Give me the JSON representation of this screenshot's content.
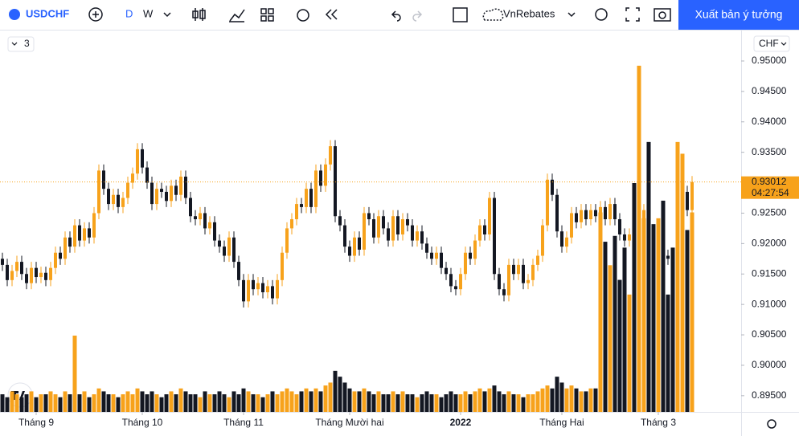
{
  "toolbar": {
    "symbol": "USDCHF",
    "intervals": [
      "D",
      "W"
    ],
    "layout": "VnRebates",
    "publish": "Xuất bản ý tưởng"
  },
  "legend_toggle": "3",
  "currency": "CHF",
  "chart_data": {
    "type": "candlestick",
    "up_color": "#f7a21b",
    "down_color": "#131722",
    "xlim": [
      -0.5,
      153.17
    ],
    "xticks": [
      {
        "value": 7,
        "label": "Tháng 9"
      },
      {
        "value": 29,
        "label": "Tháng 10"
      },
      {
        "value": 50,
        "label": "Tháng 11"
      },
      {
        "value": 72,
        "label": "Tháng Mười hai"
      },
      {
        "value": 95,
        "label": "2022"
      },
      {
        "value": 116,
        "label": "Tháng Hai"
      },
      {
        "value": 136,
        "label": "Tháng 3"
      }
    ],
    "ylim": [
      0.89234,
      0.95501
    ],
    "yticks": [
      {
        "value": 0.95,
        "label": "0.95000"
      },
      {
        "value": 0.945,
        "label": "0.94500"
      },
      {
        "value": 0.94,
        "label": "0.94000"
      },
      {
        "value": 0.935,
        "label": "0.93500"
      },
      {
        "value": 0.93,
        "label": "0.93000"
      },
      {
        "value": 0.925,
        "label": "0.92500"
      },
      {
        "value": 0.92,
        "label": "0.92000"
      },
      {
        "value": 0.915,
        "label": "0.91500"
      },
      {
        "value": 0.91,
        "label": "0.91000"
      },
      {
        "value": 0.905,
        "label": "0.90500"
      },
      {
        "value": 0.9,
        "label": "0.90000"
      },
      {
        "value": 0.895,
        "label": "0.89500"
      }
    ],
    "last_price": {
      "value": 0.93012,
      "label": "0.93012"
    },
    "countdown": "04:27:54",
    "vlim": [
      0,
      130
    ],
    "open": [
      0.9175,
      0.9165,
      0.914,
      0.9155,
      0.917,
      0.915,
      0.9135,
      0.916,
      0.9145,
      0.9152,
      0.914,
      0.916,
      0.9185,
      0.9175,
      0.921,
      0.9195,
      0.923,
      0.9205,
      0.9225,
      0.921,
      0.925,
      0.932,
      0.929,
      0.9265,
      0.928,
      0.926,
      0.9275,
      0.93,
      0.9315,
      0.9355,
      0.9325,
      0.93,
      0.9265,
      0.929,
      0.9285,
      0.927,
      0.9295,
      0.928,
      0.931,
      0.9275,
      0.9245,
      0.924,
      0.925,
      0.9225,
      0.9235,
      0.9205,
      0.9195,
      0.918,
      0.921,
      0.917,
      0.914,
      0.9105,
      0.914,
      0.9125,
      0.9135,
      0.912,
      0.913,
      0.911,
      0.914,
      0.9185,
      0.9225,
      0.924,
      0.9265,
      0.926,
      0.929,
      0.926,
      0.932,
      0.9295,
      0.933,
      0.936,
      0.9245,
      0.923,
      0.9195,
      0.918,
      0.921,
      0.919,
      0.925,
      0.924,
      0.921,
      0.9245,
      0.9225,
      0.9205,
      0.9245,
      0.9215,
      0.924,
      0.923,
      0.9205,
      0.922,
      0.92,
      0.9185,
      0.9175,
      0.9185,
      0.916,
      0.915,
      0.913,
      0.9125,
      0.915,
      0.9185,
      0.9175,
      0.9205,
      0.923,
      0.9215,
      0.9275,
      0.915,
      0.9125,
      0.9115,
      0.9165,
      0.915,
      0.9165,
      0.9135,
      0.914,
      0.9165,
      0.918,
      0.923,
      0.9305,
      0.928,
      0.922,
      0.9195,
      0.921,
      0.925,
      0.9235,
      0.9255,
      0.924,
      0.9255,
      0.9245,
      0.926,
      0.924,
      0.9265,
      0.924,
      0.9215,
      0.9205,
      0.9215,
      0.917,
      0.922,
      0.9255,
      0.919,
      0.9175,
      0.9205,
      0.918,
      0.9175,
      0.917,
      0.9245,
      0.9285,
      0.9255
    ],
    "high": [
      0.9185,
      0.9175,
      0.9165,
      0.918,
      0.918,
      0.916,
      0.917,
      0.917,
      0.9162,
      0.9162,
      0.917,
      0.9195,
      0.9195,
      0.922,
      0.922,
      0.924,
      0.924,
      0.9235,
      0.9235,
      0.926,
      0.933,
      0.933,
      0.93,
      0.929,
      0.929,
      0.9285,
      0.931,
      0.9325,
      0.9365,
      0.9365,
      0.9335,
      0.931,
      0.93,
      0.93,
      0.9295,
      0.9305,
      0.9305,
      0.932,
      0.932,
      0.9285,
      0.9255,
      0.926,
      0.926,
      0.9245,
      0.9245,
      0.9215,
      0.9205,
      0.922,
      0.922,
      0.918,
      0.915,
      0.915,
      0.915,
      0.9145,
      0.9145,
      0.914,
      0.914,
      0.915,
      0.9195,
      0.9235,
      0.925,
      0.9275,
      0.9275,
      0.93,
      0.93,
      0.933,
      0.933,
      0.934,
      0.937,
      0.937,
      0.9255,
      0.924,
      0.9205,
      0.922,
      0.922,
      0.926,
      0.926,
      0.925,
      0.9255,
      0.9255,
      0.9235,
      0.9255,
      0.9255,
      0.925,
      0.925,
      0.924,
      0.923,
      0.923,
      0.921,
      0.9195,
      0.9195,
      0.9195,
      0.917,
      0.916,
      0.914,
      0.916,
      0.9195,
      0.9195,
      0.9215,
      0.924,
      0.924,
      0.9285,
      0.9285,
      0.916,
      0.9135,
      0.9175,
      0.9175,
      0.9175,
      0.9175,
      0.915,
      0.9175,
      0.919,
      0.924,
      0.9315,
      0.9315,
      0.929,
      0.923,
      0.922,
      0.926,
      0.926,
      0.9265,
      0.9265,
      0.9265,
      0.9265,
      0.927,
      0.927,
      0.9275,
      0.9275,
      0.925,
      0.9225,
      0.9225,
      0.9225,
      0.923,
      0.9265,
      0.9265,
      0.92,
      0.9215,
      0.9215,
      0.919,
      0.9185,
      0.9255,
      0.9295,
      0.9295,
      0.9311
    ],
    "low": [
      0.9155,
      0.913,
      0.913,
      0.9145,
      0.914,
      0.9125,
      0.9125,
      0.9135,
      0.9135,
      0.913,
      0.913,
      0.915,
      0.9165,
      0.9165,
      0.9185,
      0.9185,
      0.9195,
      0.9195,
      0.92,
      0.92,
      0.924,
      0.928,
      0.9255,
      0.9255,
      0.925,
      0.925,
      0.9265,
      0.929,
      0.9305,
      0.9315,
      0.929,
      0.9255,
      0.9255,
      0.9275,
      0.926,
      0.926,
      0.927,
      0.927,
      0.9265,
      0.9235,
      0.923,
      0.923,
      0.9215,
      0.9215,
      0.9195,
      0.9185,
      0.917,
      0.917,
      0.916,
      0.913,
      0.9095,
      0.9095,
      0.9115,
      0.9115,
      0.911,
      0.911,
      0.91,
      0.91,
      0.913,
      0.9175,
      0.9215,
      0.923,
      0.925,
      0.925,
      0.925,
      0.925,
      0.9285,
      0.9285,
      0.932,
      0.9235,
      0.922,
      0.9185,
      0.917,
      0.917,
      0.918,
      0.918,
      0.923,
      0.92,
      0.92,
      0.9215,
      0.9195,
      0.9195,
      0.9205,
      0.9205,
      0.922,
      0.9195,
      0.9195,
      0.919,
      0.9175,
      0.9165,
      0.9165,
      0.915,
      0.914,
      0.912,
      0.9115,
      0.9115,
      0.914,
      0.9165,
      0.9165,
      0.9195,
      0.9205,
      0.9205,
      0.914,
      0.9115,
      0.9105,
      0.9105,
      0.914,
      0.914,
      0.9125,
      0.9125,
      0.913,
      0.9155,
      0.917,
      0.922,
      0.927,
      0.921,
      0.9185,
      0.9185,
      0.92,
      0.9225,
      0.9225,
      0.923,
      0.923,
      0.9235,
      0.9235,
      0.923,
      0.923,
      0.923,
      0.9205,
      0.9195,
      0.9195,
      0.916,
      0.916,
      0.921,
      0.918,
      0.9165,
      0.9165,
      0.917,
      0.9165,
      0.916,
      0.916,
      0.9235,
      0.9245,
      0.9245
    ],
    "close": [
      0.9165,
      0.914,
      0.9155,
      0.917,
      0.915,
      0.9135,
      0.916,
      0.9145,
      0.9152,
      0.914,
      0.916,
      0.9185,
      0.9175,
      0.921,
      0.9195,
      0.923,
      0.9205,
      0.9225,
      0.921,
      0.925,
      0.932,
      0.929,
      0.9265,
      0.928,
      0.926,
      0.9275,
      0.93,
      0.9315,
      0.9355,
      0.9325,
      0.93,
      0.9265,
      0.929,
      0.9285,
      0.927,
      0.9295,
      0.928,
      0.931,
      0.9275,
      0.9245,
      0.924,
      0.925,
      0.9225,
      0.9235,
      0.9205,
      0.9195,
      0.918,
      0.921,
      0.917,
      0.914,
      0.9105,
      0.914,
      0.9125,
      0.9135,
      0.912,
      0.913,
      0.911,
      0.914,
      0.9185,
      0.9225,
      0.924,
      0.9265,
      0.926,
      0.929,
      0.926,
      0.932,
      0.9295,
      0.933,
      0.936,
      0.9245,
      0.923,
      0.9195,
      0.918,
      0.921,
      0.919,
      0.925,
      0.924,
      0.921,
      0.9245,
      0.9225,
      0.9205,
      0.9245,
      0.9215,
      0.924,
      0.923,
      0.9205,
      0.922,
      0.92,
      0.9185,
      0.9175,
      0.9185,
      0.916,
      0.915,
      0.913,
      0.9125,
      0.915,
      0.9185,
      0.9175,
      0.9205,
      0.923,
      0.9215,
      0.9275,
      0.915,
      0.9125,
      0.9115,
      0.9165,
      0.915,
      0.9165,
      0.9135,
      0.914,
      0.9165,
      0.918,
      0.923,
      0.9305,
      0.928,
      0.922,
      0.9195,
      0.921,
      0.925,
      0.9235,
      0.9255,
      0.924,
      0.9255,
      0.9245,
      0.926,
      0.924,
      0.9265,
      0.924,
      0.9215,
      0.9205,
      0.9215,
      0.917,
      0.922,
      0.9255,
      0.919,
      0.9175,
      0.9205,
      0.918,
      0.9175,
      0.917,
      0.9245,
      0.9285,
      0.9255,
      0.9301
    ],
    "volume": [
      6,
      5,
      7,
      6,
      5,
      6,
      7,
      5,
      6,
      6,
      7,
      6,
      5,
      7,
      6,
      26,
      6,
      7,
      5,
      6,
      8,
      7,
      6,
      6,
      5,
      6,
      7,
      6,
      8,
      7,
      6,
      7,
      6,
      5,
      6,
      7,
      6,
      8,
      7,
      6,
      6,
      5,
      7,
      6,
      6,
      7,
      6,
      5,
      7,
      6,
      8,
      7,
      6,
      6,
      5,
      6,
      7,
      6,
      7,
      8,
      7,
      6,
      7,
      8,
      7,
      8,
      7,
      9,
      10,
      14,
      12,
      10,
      8,
      7,
      7,
      8,
      7,
      6,
      7,
      6,
      6,
      7,
      6,
      7,
      6,
      6,
      5,
      6,
      7,
      6,
      6,
      5,
      6,
      7,
      6,
      6,
      7,
      6,
      7,
      8,
      7,
      8,
      9,
      7,
      6,
      7,
      6,
      6,
      5,
      6,
      6,
      7,
      8,
      9,
      8,
      12,
      10,
      8,
      9,
      8,
      7,
      7,
      8,
      8,
      68,
      58,
      50,
      60,
      45,
      56,
      40,
      78,
      118,
      66,
      92,
      64,
      66,
      72,
      40,
      56,
      92,
      88,
      62,
      68
    ]
  }
}
